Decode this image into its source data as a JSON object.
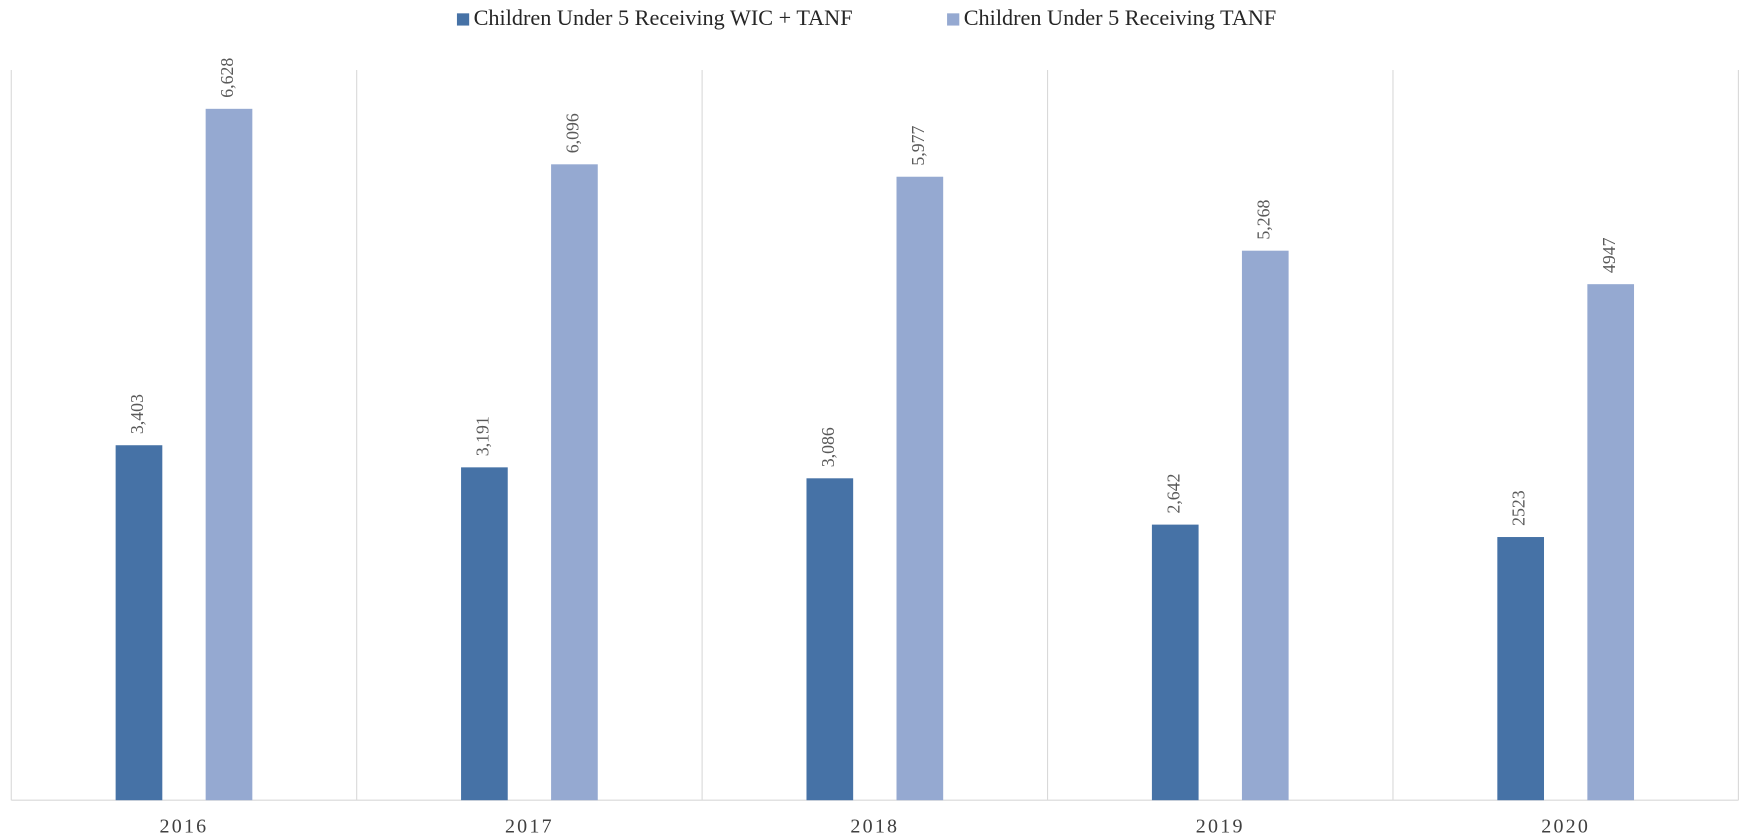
{
  "chart_data": {
    "type": "bar",
    "categories": [
      "2016",
      "2017",
      "2018",
      "2019",
      "2020"
    ],
    "series": [
      {
        "name": "Children Under 5 Receiving WIC + TANF",
        "color": "#4672a6",
        "values": [
          3403,
          3191,
          3086,
          2642,
          2523
        ],
        "value_labels": [
          "3,403",
          "3,191",
          "3,086",
          "2,642",
          "2523"
        ]
      },
      {
        "name": "Children Under 5 Receiving TANF",
        "color": "#95a9d1",
        "values": [
          6628,
          6096,
          5977,
          5268,
          4947
        ],
        "value_labels": [
          "6,628",
          "6,096",
          "5,977",
          "5,268",
          "4947"
        ]
      }
    ],
    "ylim": [
      0,
      7000
    ]
  }
}
